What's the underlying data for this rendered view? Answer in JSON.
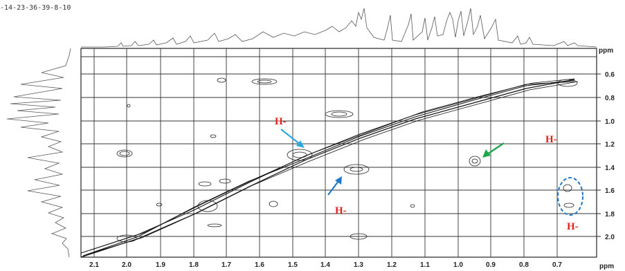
{
  "title": "-14-23-36-39-8-10",
  "axes": {
    "unit_label": "ppm",
    "x_ticks": [
      "2.1",
      "2.0",
      "1.9",
      "1.8",
      "1.7",
      "1.6",
      "1.5",
      "1.4",
      "1.3",
      "1.2",
      "1.1",
      "1.0",
      "0.9",
      "0.8",
      "0.7"
    ],
    "y_ticks": [
      "0.6",
      "0.8",
      "1.0",
      "1.2",
      "1.4",
      "1.6",
      "1.8",
      "2.0"
    ]
  },
  "annotations": [
    {
      "text": "H-",
      "color": "#e0201c"
    },
    {
      "text": "H-",
      "color": "#e0201c"
    },
    {
      "text": "H-",
      "color": "#e0201c"
    },
    {
      "text": "H-",
      "color": "#e0201c"
    }
  ],
  "arrows": [
    {
      "name": "arrow-cyan",
      "color": "#29a9e0"
    },
    {
      "name": "arrow-blue",
      "color": "#1f78c8"
    },
    {
      "name": "arrow-green",
      "color": "#1aa84a"
    }
  ],
  "highlight_color": "#1f78c8"
}
